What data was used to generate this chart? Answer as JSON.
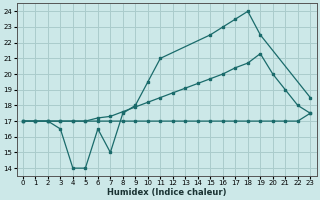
{
  "xlabel": "Humidex (Indice chaleur)",
  "bg_color": "#cce8e8",
  "grid_color": "#aacccc",
  "line_color": "#1a6b6b",
  "xlim": [
    -0.5,
    23.5
  ],
  "ylim": [
    13.5,
    24.5
  ],
  "xticks": [
    0,
    1,
    2,
    3,
    4,
    5,
    6,
    7,
    8,
    9,
    10,
    11,
    12,
    13,
    14,
    15,
    16,
    17,
    18,
    19,
    20,
    21,
    22,
    23
  ],
  "yticks": [
    14,
    15,
    16,
    17,
    18,
    19,
    20,
    21,
    22,
    23,
    24
  ],
  "line1_x": [
    0,
    1,
    2,
    3,
    4,
    5,
    6,
    7,
    8,
    9,
    10,
    11,
    15,
    16,
    17,
    18,
    19,
    23
  ],
  "line1_y": [
    17,
    17,
    17,
    16.5,
    14.0,
    14.0,
    16.5,
    15.0,
    17.5,
    18.0,
    19.5,
    21.0,
    22.5,
    23.0,
    23.5,
    24.0,
    22.5,
    18.5
  ],
  "line2_x": [
    0,
    1,
    2,
    3,
    4,
    5,
    6,
    7,
    8,
    9,
    10,
    11,
    12,
    13,
    14,
    15,
    16,
    17,
    18,
    19,
    20,
    21,
    22,
    23
  ],
  "line2_y": [
    17,
    17,
    17,
    17,
    17,
    17,
    17.2,
    17.3,
    17.6,
    17.9,
    18.2,
    18.5,
    18.8,
    19.1,
    19.4,
    19.7,
    20.0,
    20.4,
    20.7,
    21.3,
    20.0,
    19.0,
    18.0,
    17.5
  ],
  "line3_x": [
    0,
    1,
    2,
    3,
    4,
    5,
    6,
    7,
    8,
    9,
    10,
    11,
    12,
    13,
    14,
    15,
    16,
    17,
    18,
    19,
    20,
    21,
    22,
    23
  ],
  "line3_y": [
    17,
    17,
    17,
    17,
    17,
    17,
    17,
    17,
    17,
    17,
    17,
    17,
    17,
    17,
    17,
    17,
    17,
    17,
    17,
    17,
    17,
    17,
    17,
    17.5
  ]
}
